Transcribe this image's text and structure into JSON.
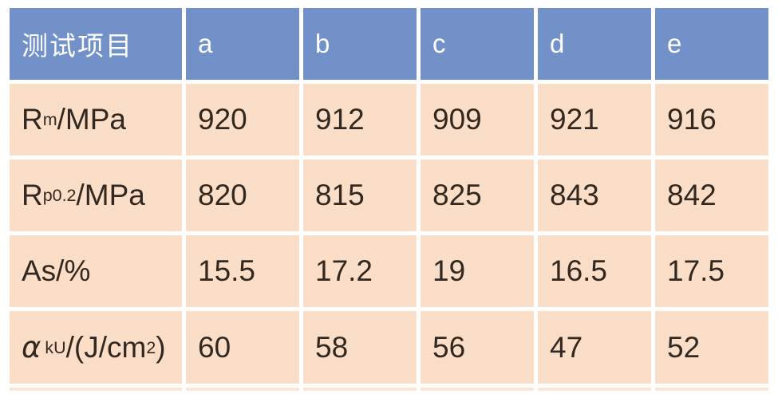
{
  "colors": {
    "header_bg": "#7191c8",
    "header_text": "#ffffff",
    "cell_bg": "#fbdec7",
    "cell_text": "#33281f",
    "gap": "#ffffff"
  },
  "chart_data": {
    "type": "table",
    "title": "",
    "columns": [
      "测试项目",
      "a",
      "b",
      "c",
      "d",
      "e"
    ],
    "rows": [
      {
        "label_text": "Rm/MPa",
        "label_parts": [
          {
            "t": "text",
            "v": "R"
          },
          {
            "t": "sub",
            "v": "m"
          },
          {
            "t": "text",
            "v": "/MPa"
          }
        ],
        "values": [
          "920",
          "912",
          "909",
          "921",
          "916"
        ]
      },
      {
        "label_text": "Rp0.2/MPa",
        "label_parts": [
          {
            "t": "text",
            "v": "R"
          },
          {
            "t": "sub",
            "v": "p0.2"
          },
          {
            "t": "text",
            "v": "/MPa"
          }
        ],
        "values": [
          "820",
          "815",
          "825",
          "843",
          "842"
        ]
      },
      {
        "label_text": "As/%",
        "label_parts": [
          {
            "t": "text",
            "v": "As/%"
          }
        ],
        "values": [
          "15.5",
          "17.2",
          "19",
          "16.5",
          "17.5"
        ]
      },
      {
        "label_text": "αkU/(J/cm2)",
        "label_parts": [
          {
            "t": "i",
            "v": "α"
          },
          {
            "t": "sub",
            "v": "kU"
          },
          {
            "t": "text",
            "v": "/(J/cm"
          },
          {
            "t": "sup",
            "v": "2"
          },
          {
            "t": "text",
            "v": ")"
          }
        ],
        "values": [
          "60",
          "58",
          "56",
          "47",
          "52"
        ]
      }
    ]
  }
}
